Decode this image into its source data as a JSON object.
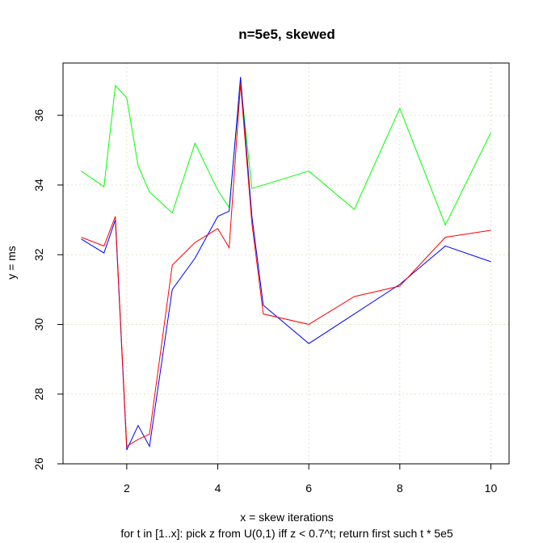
{
  "chart_data": {
    "type": "line",
    "title": "n=5e5, skewed",
    "xlabel": "x = skew iterations",
    "xlabel2": "for t in [1..x]: pick z from U(0,1) iff z < 0.7^t; return first such t * 5e5",
    "ylabel": "y = ms",
    "xlim": [
      0.6,
      10.4
    ],
    "ylim": [
      26,
      37.5
    ],
    "xticks": [
      2,
      4,
      6,
      8,
      10
    ],
    "yticks": [
      26,
      28,
      30,
      32,
      34,
      36
    ],
    "grid": true,
    "series": [
      {
        "color": "#00ff00",
        "x": [
          1,
          1.5,
          1.75,
          2,
          2.25,
          2.5,
          3,
          3.5,
          4,
          4.25,
          4.5,
          4.75,
          5,
          6,
          7,
          8,
          9,
          10
        ],
        "y": [
          34.4,
          33.95,
          36.85,
          36.5,
          34.55,
          33.8,
          33.2,
          35.2,
          33.85,
          33.35,
          36.95,
          33.9,
          34.0,
          34.4,
          33.3,
          36.2,
          32.85,
          35.5
        ]
      },
      {
        "color": "#0000ff",
        "x": [
          1,
          1.5,
          1.75,
          2,
          2.25,
          2.5,
          3,
          3.5,
          4,
          4.25,
          4.5,
          4.75,
          5,
          6,
          7,
          8,
          9,
          10
        ],
        "y": [
          32.45,
          32.05,
          33.0,
          26.4,
          27.1,
          26.5,
          31.0,
          31.9,
          33.1,
          33.25,
          37.1,
          33.1,
          30.55,
          29.45,
          30.3,
          31.15,
          32.25,
          31.8
        ]
      },
      {
        "color": "#ff0000",
        "x": [
          1,
          1.5,
          1.75,
          2,
          2.25,
          2.5,
          3,
          3.5,
          4,
          4.25,
          4.5,
          4.75,
          5,
          6,
          7,
          8,
          9,
          10
        ],
        "y": [
          32.5,
          32.25,
          33.1,
          26.5,
          26.7,
          26.85,
          31.7,
          32.35,
          32.75,
          32.2,
          36.9,
          32.9,
          30.3,
          30.0,
          30.8,
          31.1,
          32.5,
          32.7
        ]
      }
    ]
  }
}
